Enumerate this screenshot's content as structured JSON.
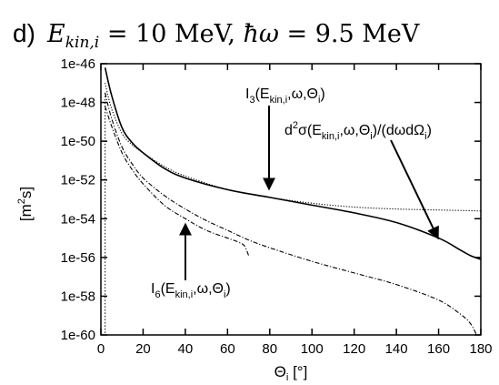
{
  "chart_data": {
    "type": "line",
    "panel_label": "d)",
    "title_formula": "E_kin,i = 10 MeV, ħω = 9.5 MeV",
    "xlabel": "Θi [°]",
    "ylabel": "[m²s]",
    "xlim": [
      0,
      180
    ],
    "ylim_log10": [
      -60,
      -46
    ],
    "y_scale": "log",
    "x_ticks": [
      0,
      20,
      40,
      60,
      80,
      100,
      120,
      140,
      160,
      180
    ],
    "y_ticks": [
      "1e-46",
      "1e-48",
      "1e-50",
      "1e-52",
      "1e-54",
      "1e-56",
      "1e-58",
      "1e-60"
    ],
    "grid": false,
    "series": [
      {
        "name": "d²σ(Ekin,i,ω,Θi)/(dωdΩi)",
        "style": "solid",
        "x": [
          2,
          5,
          10,
          15,
          20,
          30,
          40,
          60,
          80,
          100,
          120,
          140,
          160,
          170,
          175,
          180
        ],
        "log10_y": [
          -46.2,
          -47.6,
          -49.3,
          -50.1,
          -50.6,
          -51.4,
          -51.9,
          -52.5,
          -52.9,
          -53.3,
          -53.7,
          -54.2,
          -55.0,
          -55.6,
          -55.9,
          -56.1
        ]
      },
      {
        "name": "I3(Ekin,i,ω,Θi)",
        "style": "dotted",
        "x": [
          2,
          5,
          10,
          15,
          20,
          30,
          40,
          60,
          80,
          100,
          120,
          140,
          160,
          180
        ],
        "log10_y": [
          -47.0,
          -48.3,
          -49.6,
          -50.2,
          -50.6,
          -51.3,
          -51.8,
          -52.5,
          -52.9,
          -53.2,
          -53.4,
          -53.5,
          -53.55,
          -53.6
        ]
      },
      {
        "name": "I6(Ekin,i,ω,Θi)",
        "style": "dash-dot",
        "x": [
          2,
          5,
          10,
          15,
          20,
          30,
          40,
          50,
          60,
          70,
          80,
          100,
          120,
          140,
          160,
          170,
          175,
          178
        ],
        "log10_y": [
          -47.5,
          -48.8,
          -50.3,
          -51.2,
          -51.9,
          -52.8,
          -53.5,
          -54.1,
          -54.6,
          -55.1,
          -55.5,
          -56.2,
          -56.8,
          -57.4,
          -58.2,
          -58.9,
          -59.4,
          -60.0
        ]
      },
      {
        "name": "",
        "style": "dash-dot",
        "x": [
          2,
          5,
          10,
          15,
          20,
          30,
          40,
          50,
          60,
          65,
          68,
          70
        ],
        "log10_y": [
          -48.2,
          -49.2,
          -50.6,
          -51.5,
          -52.2,
          -53.3,
          -54.0,
          -54.6,
          -55.0,
          -55.2,
          -55.4,
          -55.9
        ]
      }
    ],
    "annotations": [
      {
        "label": "I3(Ekin,i,ω,Θi)",
        "arrow_to": [
          80,
          -53.0
        ]
      },
      {
        "label": "d²σ(Ekin,i,ω,Θi)/(dωdΩi)",
        "arrow_to": [
          162,
          -55.1
        ]
      },
      {
        "label": "I6(Ekin,i,ω,Θi)",
        "arrow_to": [
          40,
          -54.2
        ]
      }
    ]
  }
}
